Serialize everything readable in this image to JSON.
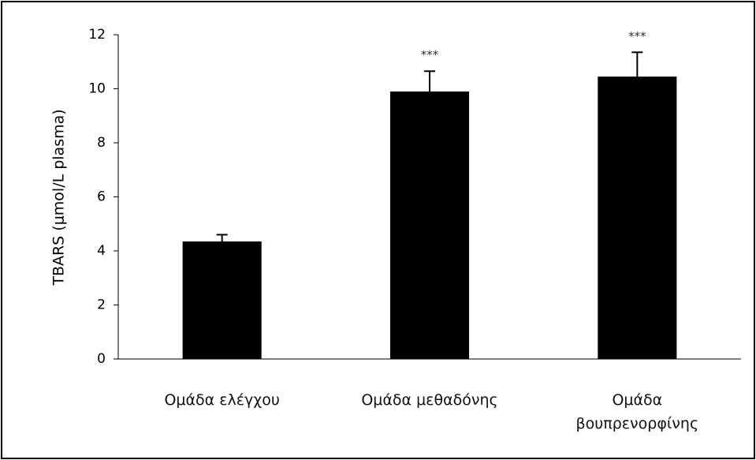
{
  "chart_data": {
    "type": "bar",
    "y_label": "TBARS (μmol/L plasma)",
    "categories": [
      "Ομάδα ελέγχου",
      "Ομάδα μεθαδόνης",
      "Ομάδα βουπρενορφίνης"
    ],
    "values": [
      4.35,
      9.9,
      10.45
    ],
    "errors": [
      0.25,
      0.75,
      0.9
    ],
    "significance": [
      null,
      "***",
      "***"
    ],
    "color": "#000000",
    "ylim": [
      0,
      12
    ],
    "yticks": [
      0,
      2,
      4,
      6,
      8,
      10,
      12
    ],
    "grid": false
  }
}
